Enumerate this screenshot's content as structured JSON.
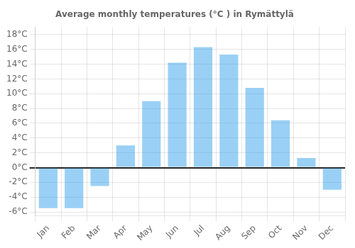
{
  "chart_data": {
    "type": "bar",
    "title": "Average monthly temperatures (°C ) in Rymättylä",
    "categories": [
      "Jan",
      "Feb",
      "Mar",
      "Apr",
      "May",
      "Jun",
      "Jul",
      "Aug",
      "Sep",
      "Oct",
      "Nov",
      "Dec"
    ],
    "values": [
      -5.5,
      -5.5,
      -2.5,
      3.0,
      9.0,
      14.2,
      16.3,
      15.3,
      10.8,
      6.4,
      1.3,
      -3.0
    ],
    "ylim": [
      -6.5,
      19
    ],
    "yticks": [
      {
        "value": -6,
        "label": "-6°C"
      },
      {
        "value": -4,
        "label": "-4°C"
      },
      {
        "value": -2,
        "label": "-2°C"
      },
      {
        "value": 0,
        "label": "0°C"
      },
      {
        "value": 2,
        "label": "2°C"
      },
      {
        "value": 4,
        "label": "4°C"
      },
      {
        "value": 6,
        "label": "6°C"
      },
      {
        "value": 8,
        "label": "8°C"
      },
      {
        "value": 10,
        "label": "10°C"
      },
      {
        "value": 12,
        "label": "12°C"
      },
      {
        "value": 14,
        "label": "14°C"
      },
      {
        "value": 16,
        "label": "16°C"
      },
      {
        "value": 18,
        "label": "18°C"
      }
    ],
    "grid": true
  }
}
